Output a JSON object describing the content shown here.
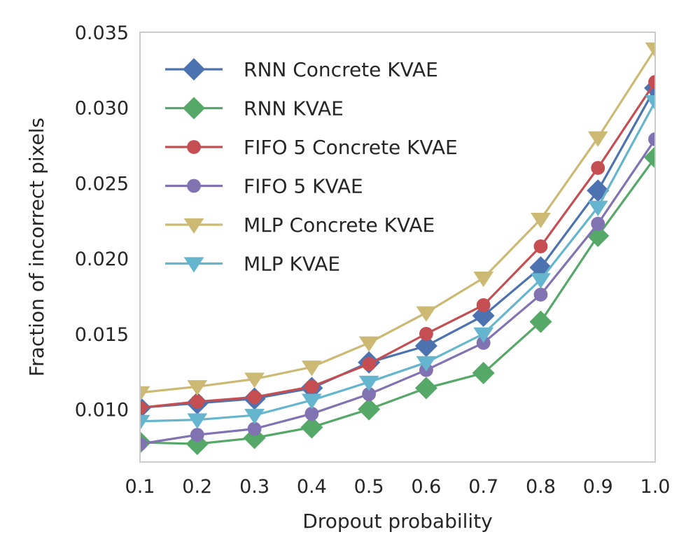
{
  "chart_data": {
    "type": "line",
    "title": "",
    "xlabel": "Dropout probability",
    "ylabel": "Fraction of incorrect pixels",
    "x": [
      0.1,
      0.2,
      0.3,
      0.4,
      0.5,
      0.6,
      0.7,
      0.8,
      0.9,
      1.0
    ],
    "xlim": [
      0.1,
      1.0
    ],
    "ylim": [
      0.0065,
      0.035
    ],
    "x_ticks": [
      "0.1",
      "0.2",
      "0.3",
      "0.4",
      "0.5",
      "0.6",
      "0.7",
      "0.8",
      "0.9",
      "1.0"
    ],
    "y_ticks": [
      "0.010",
      "0.015",
      "0.020",
      "0.025",
      "0.030",
      "0.035"
    ],
    "y_tick_values": [
      0.01,
      0.015,
      0.02,
      0.025,
      0.03,
      0.035
    ],
    "grid": false,
    "legend_position": "top-left",
    "series": [
      {
        "name": "RNN Concrete KVAE",
        "color": "#4c72b0",
        "marker": "diamond",
        "values": [
          0.0101,
          0.0104,
          0.0107,
          0.0114,
          0.0131,
          0.0142,
          0.0162,
          0.0194,
          0.0245,
          0.0313
        ]
      },
      {
        "name": "RNN KVAE",
        "color": "#55a868",
        "marker": "diamond",
        "values": [
          0.0078,
          0.0077,
          0.0081,
          0.0088,
          0.01,
          0.0114,
          0.0124,
          0.0158,
          0.0215,
          0.0267
        ]
      },
      {
        "name": "FIFO 5 Concrete KVAE",
        "color": "#c44e52",
        "marker": "circle",
        "values": [
          0.0101,
          0.0105,
          0.0108,
          0.0115,
          0.013,
          0.015,
          0.0169,
          0.0208,
          0.026,
          0.0317
        ]
      },
      {
        "name": "FIFO 5 KVAE",
        "color": "#8172b2",
        "marker": "circle",
        "values": [
          0.0077,
          0.0083,
          0.0087,
          0.0097,
          0.011,
          0.0126,
          0.0144,
          0.0176,
          0.0223,
          0.0279
        ]
      },
      {
        "name": "MLP Concrete KVAE",
        "color": "#ccb974",
        "marker": "triangle-down",
        "values": [
          0.0111,
          0.0115,
          0.012,
          0.0128,
          0.0144,
          0.0164,
          0.0187,
          0.0226,
          0.028,
          0.0339
        ]
      },
      {
        "name": "MLP KVAE",
        "color": "#64b5cd",
        "marker": "triangle-down",
        "values": [
          0.0092,
          0.0093,
          0.0096,
          0.0106,
          0.0118,
          0.0131,
          0.015,
          0.0186,
          0.0234,
          0.0304
        ]
      }
    ]
  }
}
